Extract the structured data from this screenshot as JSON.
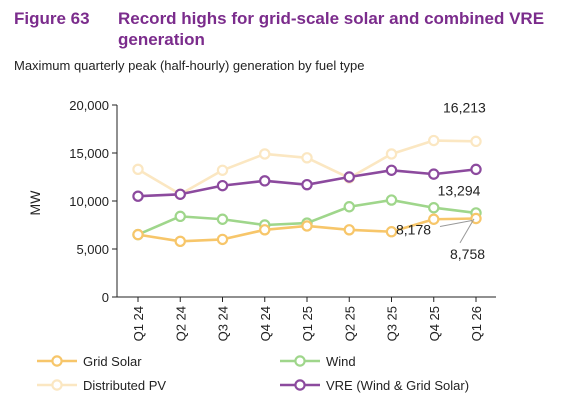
{
  "header": {
    "figure_label": "Figure 63",
    "title": "Record highs for grid-scale solar and combined VRE generation"
  },
  "subtitle": "Maximum quarterly peak (half-hourly) generation by fuel type",
  "chart_data": {
    "type": "line",
    "categories": [
      "Q1 24",
      "Q2 24",
      "Q3 24",
      "Q4 24",
      "Q1 25",
      "Q2 25",
      "Q3 25",
      "Q4 25",
      "Q1 26"
    ],
    "ylabel": "MW",
    "xlabel": "",
    "ylim": [
      0,
      20000
    ],
    "yticks": [
      0,
      5000,
      10000,
      15000,
      20000
    ],
    "ytick_labels": [
      "0",
      "5,000",
      "10,000",
      "15,000",
      "20,000"
    ],
    "grid": false,
    "legend_position": "bottom",
    "series": [
      {
        "name": "Distributed PV",
        "color": "#fbe7c2",
        "values": [
          13300,
          10700,
          13200,
          14900,
          14500,
          12400,
          14900,
          16300,
          16213
        ]
      },
      {
        "name": "VRE (Wind & Grid Solar)",
        "color": "#8c4a9e",
        "values": [
          10500,
          10700,
          11600,
          12100,
          11700,
          12500,
          13200,
          12800,
          13294
        ]
      },
      {
        "name": "Wind",
        "color": "#9fd68b",
        "values": [
          6500,
          8400,
          8100,
          7500,
          7700,
          9400,
          10100,
          9300,
          8758
        ]
      },
      {
        "name": "Grid Solar",
        "color": "#f7c66a",
        "values": [
          6500,
          5800,
          6000,
          7000,
          7400,
          7000,
          6800,
          8100,
          8178
        ]
      }
    ],
    "annotations": [
      {
        "text": "16,213",
        "series": "Distributed PV"
      },
      {
        "text": "13,294",
        "series": "VRE (Wind & Grid Solar)"
      },
      {
        "text": "8,178",
        "series": "Grid Solar"
      },
      {
        "text": "8,758",
        "series": "Wind"
      }
    ],
    "legend": [
      {
        "label": "Grid Solar",
        "series": "Grid Solar"
      },
      {
        "label": "Wind",
        "series": "Wind"
      },
      {
        "label": "Distributed PV",
        "series": "Distributed PV"
      },
      {
        "label": "VRE (Wind & Grid Solar)",
        "series": "VRE (Wind & Grid Solar)"
      }
    ]
  }
}
